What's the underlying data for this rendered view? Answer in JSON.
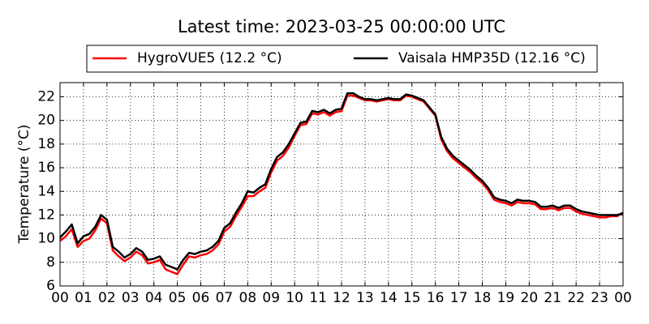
{
  "chart_data": {
    "type": "line",
    "title": "Latest time: 2023-03-25 00:00:00 UTC",
    "y_label": "Temperature (°C)",
    "grid": true,
    "legend": "top",
    "x": [
      0,
      0.25,
      0.5,
      0.75,
      1,
      1.25,
      1.5,
      1.75,
      2,
      2.25,
      2.5,
      2.75,
      3,
      3.25,
      3.5,
      3.75,
      4,
      4.25,
      4.5,
      4.75,
      5,
      5.25,
      5.5,
      5.75,
      6,
      6.25,
      6.5,
      6.75,
      7,
      7.25,
      7.5,
      7.75,
      8,
      8.25,
      8.5,
      8.75,
      9,
      9.25,
      9.5,
      9.75,
      10,
      10.25,
      10.5,
      10.75,
      11,
      11.25,
      11.5,
      11.75,
      12,
      12.25,
      12.5,
      12.75,
      13,
      13.25,
      13.5,
      13.75,
      14,
      14.25,
      14.5,
      14.75,
      15,
      15.25,
      15.5,
      15.75,
      16,
      16.25,
      16.5,
      16.75,
      17,
      17.25,
      17.5,
      17.75,
      18,
      18.25,
      18.5,
      18.75,
      19,
      19.25,
      19.5,
      19.75,
      20,
      20.25,
      20.5,
      20.75,
      21,
      21.25,
      21.5,
      21.75,
      22,
      22.25,
      22.5,
      22.75,
      23,
      23.25,
      23.5,
      23.75,
      24
    ],
    "series": [
      {
        "name": "HygroVUE5 (12.2 °C)",
        "color": "#ff0000",
        "values": [
          9.8,
          10.2,
          10.8,
          9.3,
          9.8,
          10.0,
          10.7,
          11.7,
          11.3,
          9.0,
          8.5,
          8.1,
          8.4,
          8.9,
          8.6,
          7.9,
          8.0,
          8.2,
          7.4,
          7.2,
          7.0,
          7.8,
          8.5,
          8.4,
          8.6,
          8.7,
          9.0,
          9.5,
          10.6,
          11.0,
          11.9,
          12.7,
          13.6,
          13.6,
          14.0,
          14.3,
          15.6,
          16.6,
          17.0,
          17.7,
          18.7,
          19.6,
          19.7,
          20.6,
          20.5,
          20.7,
          20.4,
          20.7,
          20.8,
          22.1,
          22.1,
          21.9,
          21.7,
          21.7,
          21.6,
          21.7,
          21.8,
          21.7,
          21.7,
          22.1,
          22.0,
          21.8,
          21.6,
          21.0,
          20.4,
          18.4,
          17.4,
          16.8,
          16.4,
          16.0,
          15.6,
          15.1,
          14.7,
          14.1,
          13.3,
          13.1,
          13.0,
          12.8,
          13.1,
          13.0,
          13.0,
          12.9,
          12.5,
          12.5,
          12.6,
          12.4,
          12.6,
          12.6,
          12.3,
          12.1,
          12.0,
          11.9,
          11.8,
          11.8,
          11.9,
          11.9,
          12.2
        ]
      },
      {
        "name": "Vaisala HMP35D (12.16 °C)",
        "color": "#000000",
        "values": [
          10.1,
          10.6,
          11.2,
          9.6,
          10.2,
          10.4,
          11.0,
          12.0,
          11.6,
          9.3,
          8.9,
          8.4,
          8.7,
          9.2,
          8.9,
          8.2,
          8.3,
          8.5,
          7.8,
          7.6,
          7.4,
          8.2,
          8.8,
          8.7,
          8.9,
          9.0,
          9.3,
          9.8,
          10.9,
          11.3,
          12.2,
          13.0,
          14.0,
          13.9,
          14.3,
          14.6,
          15.9,
          16.9,
          17.3,
          18.0,
          18.9,
          19.8,
          19.9,
          20.8,
          20.7,
          20.9,
          20.6,
          20.9,
          21.0,
          22.3,
          22.3,
          22.0,
          21.8,
          21.8,
          21.7,
          21.8,
          21.9,
          21.8,
          21.8,
          22.2,
          22.1,
          21.9,
          21.7,
          21.1,
          20.5,
          18.6,
          17.6,
          17.0,
          16.6,
          16.2,
          15.8,
          15.3,
          14.9,
          14.3,
          13.5,
          13.3,
          13.2,
          13.0,
          13.3,
          13.2,
          13.2,
          13.1,
          12.7,
          12.7,
          12.8,
          12.6,
          12.8,
          12.8,
          12.5,
          12.3,
          12.2,
          12.1,
          12.0,
          12.0,
          12.0,
          12.0,
          12.16
        ]
      }
    ],
    "xlim": [
      0,
      24
    ],
    "xticks": [
      {
        "value": 0,
        "label": "00"
      },
      {
        "value": 1,
        "label": "01"
      },
      {
        "value": 2,
        "label": "02"
      },
      {
        "value": 3,
        "label": "03"
      },
      {
        "value": 4,
        "label": "04"
      },
      {
        "value": 5,
        "label": "05"
      },
      {
        "value": 6,
        "label": "06"
      },
      {
        "value": 7,
        "label": "07"
      },
      {
        "value": 8,
        "label": "08"
      },
      {
        "value": 9,
        "label": "09"
      },
      10,
      11,
      12,
      13,
      14,
      15,
      16,
      17,
      18,
      19,
      20,
      21,
      22,
      23,
      {
        "value": 24,
        "label": "00"
      }
    ],
    "ylim": [
      6,
      23.2
    ],
    "yticks": [
      6,
      8,
      10,
      12,
      14,
      16,
      18,
      20,
      22
    ]
  }
}
